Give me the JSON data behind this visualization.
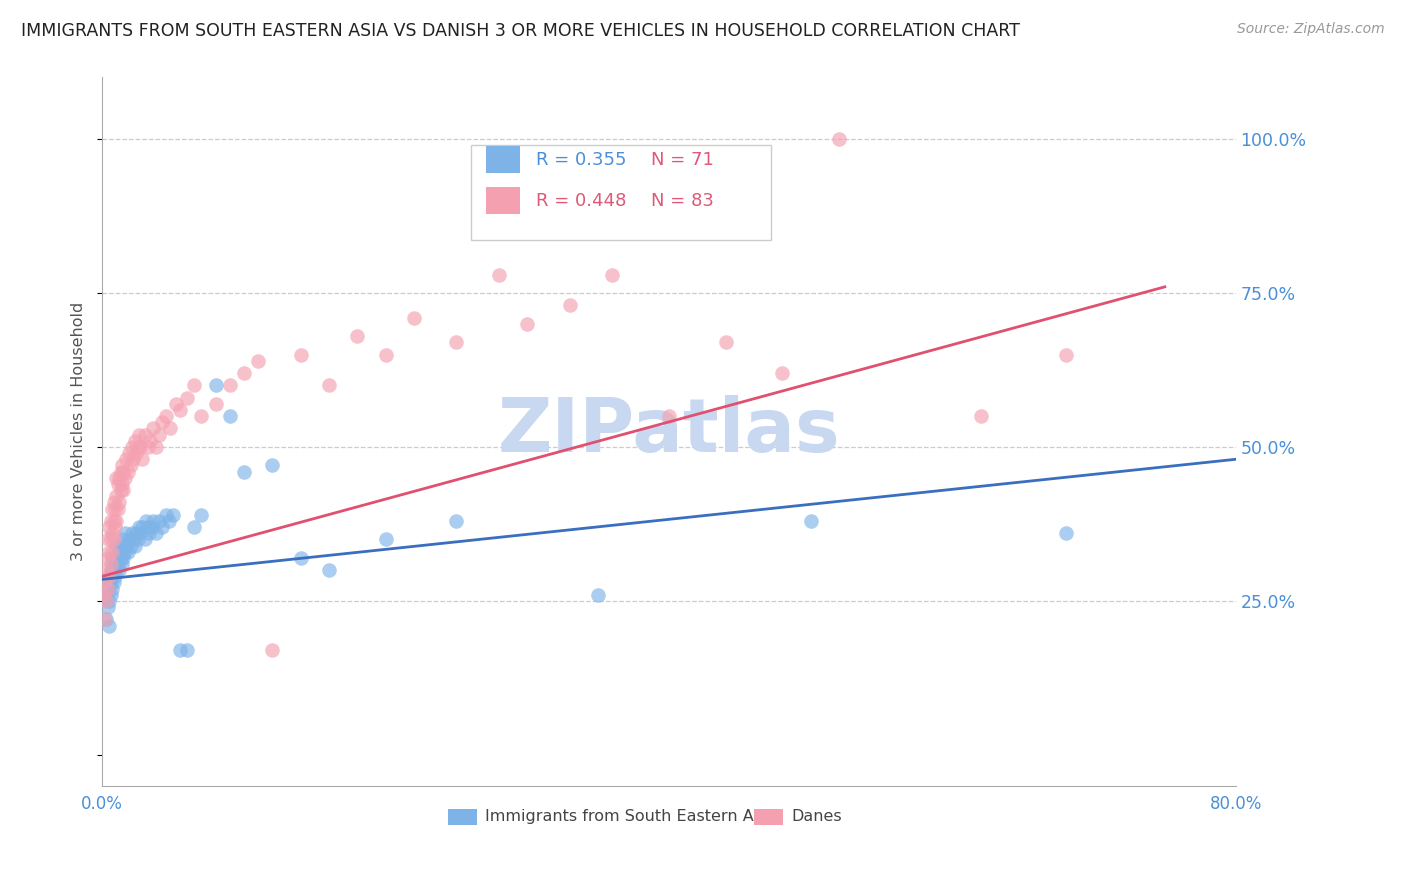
{
  "title": "IMMIGRANTS FROM SOUTH EASTERN ASIA VS DANISH 3 OR MORE VEHICLES IN HOUSEHOLD CORRELATION CHART",
  "source": "Source: ZipAtlas.com",
  "ylabel": "3 or more Vehicles in Household",
  "ytick_positions": [
    0.0,
    0.25,
    0.5,
    0.75,
    1.0
  ],
  "xlim": [
    0.0,
    0.8
  ],
  "ylim": [
    -0.05,
    1.1
  ],
  "blue_R": 0.355,
  "blue_N": 71,
  "pink_R": 0.448,
  "pink_N": 83,
  "blue_color": "#7EB3E8",
  "pink_color": "#F4A0B0",
  "blue_line_color": "#3A6FBF",
  "pink_line_color": "#E05070",
  "watermark": "ZIPatlas",
  "watermark_color": "#C8D8F0",
  "legend_label_blue": "Immigrants from South Eastern Asia",
  "legend_label_pink": "Danes",
  "blue_scatter_x": [
    0.002,
    0.003,
    0.004,
    0.004,
    0.005,
    0.005,
    0.005,
    0.006,
    0.006,
    0.006,
    0.007,
    0.007,
    0.007,
    0.008,
    0.008,
    0.009,
    0.009,
    0.01,
    0.01,
    0.01,
    0.011,
    0.011,
    0.012,
    0.012,
    0.013,
    0.013,
    0.014,
    0.014,
    0.015,
    0.015,
    0.016,
    0.016,
    0.017,
    0.018,
    0.019,
    0.02,
    0.021,
    0.022,
    0.023,
    0.024,
    0.025,
    0.026,
    0.027,
    0.028,
    0.03,
    0.031,
    0.032,
    0.033,
    0.035,
    0.036,
    0.038,
    0.04,
    0.042,
    0.045,
    0.047,
    0.05,
    0.055,
    0.06,
    0.065,
    0.07,
    0.08,
    0.09,
    0.1,
    0.12,
    0.14,
    0.16,
    0.2,
    0.25,
    0.35,
    0.5,
    0.68
  ],
  "blue_scatter_y": [
    0.26,
    0.22,
    0.24,
    0.27,
    0.21,
    0.25,
    0.28,
    0.26,
    0.28,
    0.3,
    0.27,
    0.3,
    0.32,
    0.28,
    0.31,
    0.29,
    0.32,
    0.3,
    0.32,
    0.34,
    0.31,
    0.33,
    0.3,
    0.33,
    0.32,
    0.34,
    0.31,
    0.33,
    0.32,
    0.35,
    0.33,
    0.36,
    0.34,
    0.33,
    0.35,
    0.34,
    0.36,
    0.35,
    0.34,
    0.36,
    0.35,
    0.37,
    0.36,
    0.37,
    0.35,
    0.38,
    0.37,
    0.36,
    0.37,
    0.38,
    0.36,
    0.38,
    0.37,
    0.39,
    0.38,
    0.39,
    0.17,
    0.17,
    0.37,
    0.39,
    0.6,
    0.55,
    0.46,
    0.47,
    0.32,
    0.3,
    0.35,
    0.38,
    0.26,
    0.38,
    0.36
  ],
  "pink_scatter_x": [
    0.001,
    0.002,
    0.002,
    0.003,
    0.003,
    0.004,
    0.004,
    0.004,
    0.005,
    0.005,
    0.005,
    0.006,
    0.006,
    0.006,
    0.007,
    0.007,
    0.007,
    0.008,
    0.008,
    0.008,
    0.009,
    0.009,
    0.01,
    0.01,
    0.01,
    0.011,
    0.011,
    0.012,
    0.012,
    0.013,
    0.013,
    0.014,
    0.014,
    0.015,
    0.015,
    0.016,
    0.017,
    0.018,
    0.019,
    0.02,
    0.021,
    0.022,
    0.023,
    0.024,
    0.025,
    0.026,
    0.027,
    0.028,
    0.03,
    0.032,
    0.034,
    0.036,
    0.038,
    0.04,
    0.042,
    0.045,
    0.048,
    0.052,
    0.055,
    0.06,
    0.065,
    0.07,
    0.08,
    0.09,
    0.1,
    0.11,
    0.12,
    0.14,
    0.16,
    0.18,
    0.2,
    0.22,
    0.25,
    0.28,
    0.3,
    0.33,
    0.36,
    0.4,
    0.44,
    0.48,
    0.52,
    0.62,
    0.68
  ],
  "pink_scatter_y": [
    0.26,
    0.22,
    0.28,
    0.25,
    0.3,
    0.27,
    0.32,
    0.35,
    0.29,
    0.33,
    0.37,
    0.31,
    0.35,
    0.38,
    0.33,
    0.36,
    0.4,
    0.35,
    0.38,
    0.41,
    0.37,
    0.4,
    0.38,
    0.42,
    0.45,
    0.4,
    0.44,
    0.41,
    0.45,
    0.43,
    0.46,
    0.44,
    0.47,
    0.43,
    0.46,
    0.45,
    0.48,
    0.46,
    0.49,
    0.47,
    0.5,
    0.48,
    0.51,
    0.49,
    0.5,
    0.52,
    0.5,
    0.48,
    0.52,
    0.5,
    0.51,
    0.53,
    0.5,
    0.52,
    0.54,
    0.55,
    0.53,
    0.57,
    0.56,
    0.58,
    0.6,
    0.55,
    0.57,
    0.6,
    0.62,
    0.64,
    0.17,
    0.65,
    0.6,
    0.68,
    0.65,
    0.71,
    0.67,
    0.78,
    0.7,
    0.73,
    0.78,
    0.55,
    0.67,
    0.62,
    1.0,
    0.55,
    0.65
  ],
  "blue_line_x0": 0.0,
  "blue_line_x1": 0.8,
  "blue_line_y0": 0.285,
  "blue_line_y1": 0.48,
  "pink_line_x0": 0.0,
  "pink_line_x1": 0.75,
  "pink_line_y0": 0.29,
  "pink_line_y1": 0.76
}
